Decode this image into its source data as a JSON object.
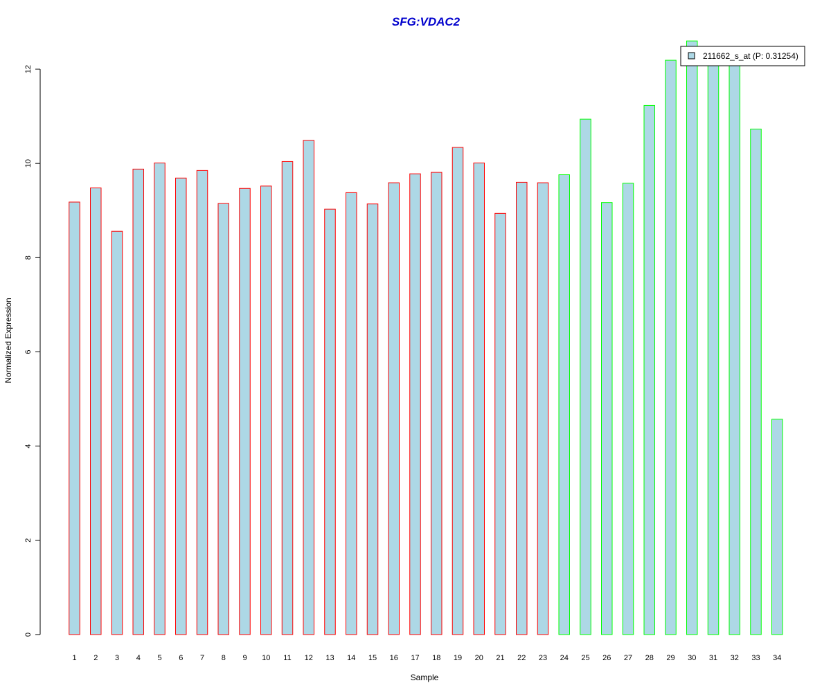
{
  "chart_data": {
    "type": "bar",
    "title": "SFG:VDAC2",
    "xlabel": "Sample",
    "ylabel": "Normalized Expression",
    "ylim": [
      0,
      12
    ],
    "y_ticks": [
      0,
      2,
      4,
      6,
      8,
      10,
      12
    ],
    "grid": false,
    "legend_position": "top-right",
    "categories": [
      "1",
      "2",
      "3",
      "4",
      "5",
      "6",
      "7",
      "8",
      "9",
      "10",
      "11",
      "12",
      "13",
      "14",
      "15",
      "16",
      "17",
      "18",
      "19",
      "20",
      "21",
      "22",
      "23",
      "24",
      "25",
      "26",
      "27",
      "28",
      "29",
      "30",
      "31",
      "32",
      "33",
      "34"
    ],
    "series": [
      {
        "name": "211662_s_at (P: 0.31254)",
        "values": [
          9.18,
          9.48,
          8.56,
          9.88,
          10.01,
          9.69,
          9.85,
          9.15,
          9.47,
          9.52,
          10.04,
          10.49,
          9.03,
          9.38,
          9.14,
          9.59,
          9.78,
          9.81,
          10.34,
          10.01,
          8.94,
          9.6,
          9.59,
          9.76,
          10.94,
          9.17,
          9.58,
          11.23,
          12.19,
          12.6,
          12.1,
          12.1,
          10.73,
          4.57
        ]
      }
    ],
    "bar_fill": "#add8e6",
    "bar_outline_colors": [
      "#ff0000",
      "#ff0000",
      "#ff0000",
      "#ff0000",
      "#ff0000",
      "#ff0000",
      "#ff0000",
      "#ff0000",
      "#ff0000",
      "#ff0000",
      "#ff0000",
      "#ff0000",
      "#ff0000",
      "#ff0000",
      "#ff0000",
      "#ff0000",
      "#ff0000",
      "#ff0000",
      "#ff0000",
      "#ff0000",
      "#ff0000",
      "#ff0000",
      "#ff0000",
      "#00ff00",
      "#00ff00",
      "#00ff00",
      "#00ff00",
      "#00ff00",
      "#00ff00",
      "#00ff00",
      "#00ff00",
      "#00ff00",
      "#00ff00",
      "#00ff00"
    ],
    "title_color": "#0000cd"
  }
}
